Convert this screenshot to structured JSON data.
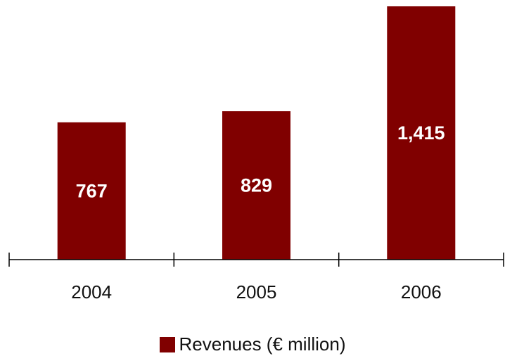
{
  "chart_data": {
    "type": "bar",
    "title": "",
    "xlabel": "",
    "ylabel": "",
    "categories": [
      "2004",
      "2005",
      "2006"
    ],
    "series": [
      {
        "name": "Revenues (€ million)",
        "values": [
          767,
          829,
          1415
        ],
        "value_labels": [
          "767",
          "829",
          "1,415"
        ],
        "color": "#800000"
      }
    ],
    "ylim": [
      0,
      1415
    ],
    "grid": false,
    "legend_position": "bottom-center",
    "bar_label_color": "#ffffff"
  }
}
